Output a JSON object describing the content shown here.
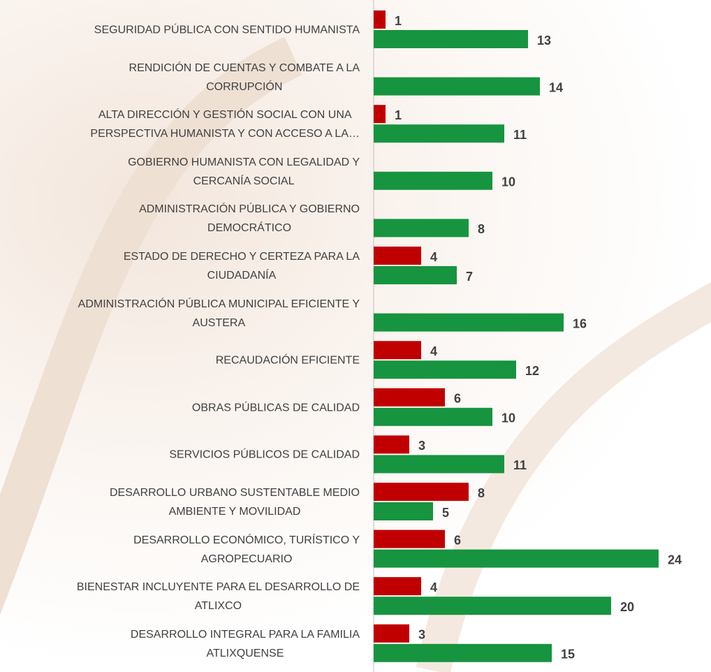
{
  "chart_data": {
    "type": "bar",
    "orientation": "horizontal",
    "categories": [
      "SEGURIDAD PÚBLICA CON SENTIDO HUMANISTA",
      "RENDICIÓN DE CUENTAS Y COMBATE A LA\nCORRUPCIÓN",
      "ALTA DIRECCIÓN Y GESTIÓN SOCIAL CON UNA\nPERSPECTIVA HUMANISTA Y CON ACCESO A LA…",
      "GOBIERNO HUMANISTA CON LEGALIDAD Y\nCERCANÍA SOCIAL",
      "ADMINISTRACIÓN PÚBLICA Y GOBIERNO\nDEMOCRÁTICO",
      "ESTADO DE DERECHO Y CERTEZA PARA LA\nCIUDADANÍA",
      "ADMINISTRACIÓN PÚBLICA MUNICIPAL EFICIENTE Y\nAUSTERA",
      "RECAUDACIÓN EFICIENTE",
      "OBRAS PÚBLICAS DE CALIDAD",
      "SERVICIOS PÚBLICOS DE CALIDAD",
      "DESARROLLO URBANO SUSTENTABLE MEDIO\nAMBIENTE  Y MOVILIDAD",
      "DESARROLLO ECONÓMICO, TURÍSTICO Y\nAGROPECUARIO",
      "BIENESTAR INCLUYENTE PARA EL DESARROLLO DE\nATLIXCO",
      "DESARROLLO INTEGRAL PARA LA FAMILIA\nATLIXQUENSE"
    ],
    "series": [
      {
        "color": "#c00000",
        "values": [
          1,
          null,
          1,
          null,
          null,
          4,
          null,
          4,
          6,
          3,
          8,
          6,
          4,
          3
        ]
      },
      {
        "color": "#17943f",
        "values": [
          13,
          14,
          11,
          10,
          8,
          7,
          16,
          12,
          10,
          11,
          5,
          24,
          20,
          15
        ]
      }
    ],
    "xlim": [
      0,
      24
    ]
  }
}
